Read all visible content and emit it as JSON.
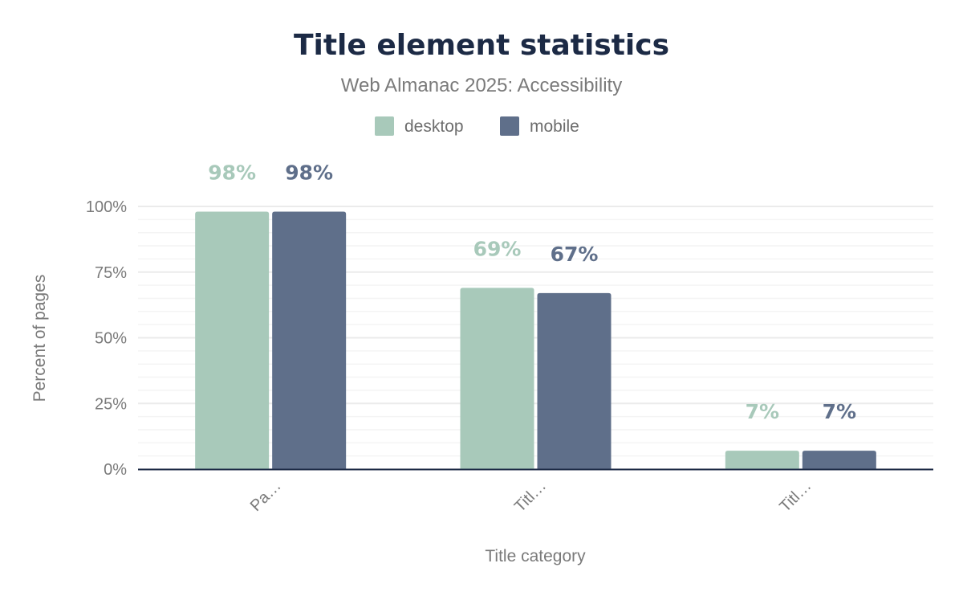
{
  "chart_data": {
    "type": "bar",
    "title": "Title element statistics",
    "subtitle": "Web Almanac 2025: Accessibility",
    "xlabel": "Title category",
    "ylabel": "Percent of pages",
    "categories": [
      "Pa…",
      "Titl…",
      "Titl…"
    ],
    "series": [
      {
        "name": "desktop",
        "color": "#a8c9ba",
        "values": [
          98,
          69,
          7
        ],
        "labels": [
          "98%",
          "69%",
          "7%"
        ]
      },
      {
        "name": "mobile",
        "color": "#5f6f8a",
        "values": [
          98,
          67,
          7
        ],
        "labels": [
          "98%",
          "67%",
          "7%"
        ]
      }
    ],
    "ylim": [
      0,
      100
    ],
    "yticks": [
      0,
      25,
      50,
      75,
      100
    ],
    "ytick_labels": [
      "0%",
      "25%",
      "50%",
      "75%",
      "100%"
    ],
    "grid": true,
    "legend": "top-center"
  }
}
